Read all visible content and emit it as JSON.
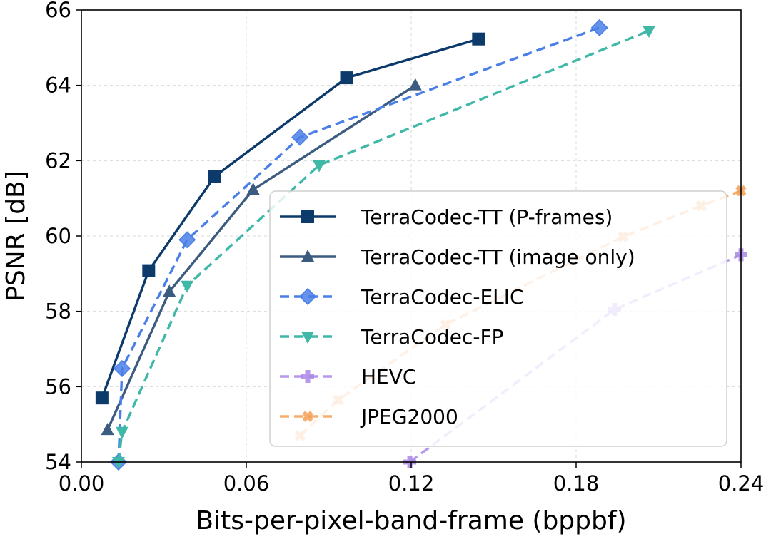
{
  "chart_data": {
    "type": "line",
    "title": "",
    "xlabel": "Bits-per-pixel-band-frame (bppbf)",
    "ylabel": "PSNR [dB]",
    "xlim": [
      0.0,
      0.24
    ],
    "ylim": [
      54,
      66
    ],
    "xticks": [
      0.0,
      0.06,
      0.12,
      0.18,
      0.24
    ],
    "xtick_labels": [
      "0.00",
      "0.06",
      "0.12",
      "0.18",
      "0.24"
    ],
    "yticks": [
      54,
      56,
      58,
      60,
      62,
      64,
      66
    ],
    "ytick_labels": [
      "54",
      "56",
      "58",
      "60",
      "62",
      "64",
      "66"
    ],
    "grid": true,
    "legend_position": "right",
    "series": [
      {
        "name": "TerraCodec-TT (P-frames)",
        "color": "#0b3a6b",
        "marker": "square",
        "dashed": false,
        "alpha": 1.0,
        "x": [
          0.0075,
          0.0245,
          0.0485,
          0.0965,
          0.1445
        ],
        "y": [
          55.7,
          59.08,
          61.58,
          64.2,
          65.23
        ]
      },
      {
        "name": "TerraCodec-TT (image only)",
        "color": "#3b5b80",
        "marker": "triangle-up",
        "dashed": false,
        "alpha": 1.0,
        "x": [
          0.0095,
          0.032,
          0.0625,
          0.1215
        ],
        "y": [
          54.85,
          58.52,
          61.23,
          64.0
        ]
      },
      {
        "name": "TerraCodec-ELIC",
        "color": "#4a7fe8",
        "marker": "diamond",
        "dashed": true,
        "alpha": 1.0,
        "x": [
          0.0135,
          0.0148,
          0.0385,
          0.0795,
          0.1885
        ],
        "y": [
          54.0,
          56.48,
          59.9,
          62.62,
          65.53
        ]
      },
      {
        "name": "TerraCodec-FP",
        "color": "#3fb8a8",
        "marker": "triangle-down",
        "dashed": true,
        "alpha": 1.0,
        "x": [
          0.0135,
          0.0148,
          0.0385,
          0.0865,
          0.2065
        ],
        "y": [
          54.0,
          54.8,
          58.68,
          61.88,
          65.45
        ]
      },
      {
        "name": "HEVC",
        "color": "#a987e8",
        "marker": "plus",
        "dashed": true,
        "alpha": 0.85,
        "x": [
          0.1195,
          0.194,
          0.24
        ],
        "y": [
          54.0,
          58.05,
          59.5
        ]
      },
      {
        "name": "JPEG2000",
        "color": "#f4a055",
        "marker": "x",
        "dashed": true,
        "alpha": 0.85,
        "x": [
          0.0795,
          0.0935,
          0.1325,
          0.197,
          0.2255,
          0.24
        ],
        "y": [
          54.7,
          55.65,
          57.65,
          59.98,
          60.8,
          61.2
        ]
      }
    ]
  }
}
